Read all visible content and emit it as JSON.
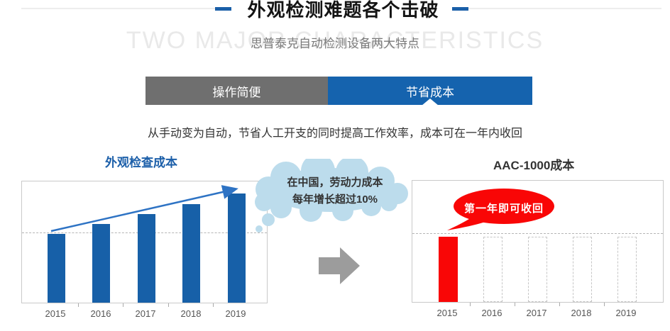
{
  "header": {
    "title": "外观检测难题各个击破",
    "subtitle": "思普泰克自动检测设备两大特点",
    "watermark": "TWO MAJOR CHARACTERISTICS"
  },
  "tabs": [
    {
      "label": "操作简便",
      "active": false
    },
    {
      "label": "节省成本",
      "active": true
    }
  ],
  "description": "从手动变为自动，节省人工开支的同时提高工作效率，成本可在一年内收回",
  "annotations": {
    "cloud_line1": "在中国，劳动力成本",
    "cloud_line2": "每年增长超过10%",
    "bubble": "第一年即可收回"
  },
  "colors": {
    "accent_blue": "#1563ae",
    "bar_blue": "#1760a8",
    "bar_red": "#f90606",
    "cloud_blue": "#bcdcec",
    "tab_gray": "#6f6f6f",
    "arrow_gray": "#9c9c9c",
    "trend_arrow_blue": "#2e73c4"
  },
  "chart_data": [
    {
      "type": "bar",
      "title": "外观检查成本",
      "categories": [
        "2015",
        "2016",
        "2017",
        "2018",
        "2019"
      ],
      "values": [
        57,
        65,
        73,
        81,
        90
      ],
      "ylim": [
        0,
        100
      ],
      "unit": "relative cost (no numeric axis shown)",
      "bar_color": "#1760a8",
      "reference_line": 58,
      "grid": "single dashed horizontal reference line",
      "trend_arrow": true,
      "annotation": "在中国，劳动力成本每年增长超过10%"
    },
    {
      "type": "bar",
      "title": "AAC-1000成本",
      "categories": [
        "2015",
        "2016",
        "2017",
        "2018",
        "2019"
      ],
      "values": [
        54,
        54,
        54,
        54,
        54
      ],
      "solid": [
        true,
        false,
        false,
        false,
        false
      ],
      "ylim": [
        0,
        100
      ],
      "unit": "relative cost (no numeric axis shown); 2016-2019 are empty dashed outlines",
      "bar_color": "#f90606",
      "reference_line": 57,
      "grid": "single dashed horizontal reference line",
      "trend_arrow": false,
      "annotation": "第一年即可收回"
    }
  ]
}
